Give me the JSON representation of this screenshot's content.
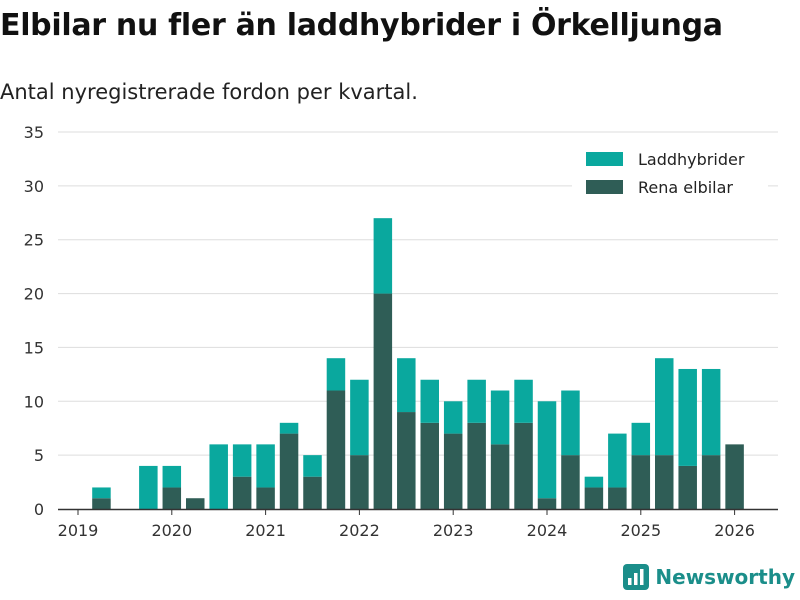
{
  "header": {
    "title": "Elbilar nu fler än laddhybrider i Örkelljunga",
    "subtitle": "Antal nyregistrerade fordon per kvartal."
  },
  "brand": {
    "name": "Newsworthy",
    "icon": "newsworthy-logo-icon"
  },
  "colors": {
    "plugin_hybrid": "#0aa89e",
    "electric": "#2f5d56",
    "grid": "#dddddd",
    "axis": "#333333"
  },
  "chart_data": {
    "type": "bar",
    "stacked": true,
    "title": "Elbilar nu fler än laddhybrider i Örkelljunga",
    "subtitle": "Antal nyregistrerade fordon per kvartal.",
    "xlabel": "",
    "ylabel": "",
    "ylim": [
      0,
      35
    ],
    "yticks": [
      0,
      5,
      10,
      15,
      20,
      25,
      30,
      35
    ],
    "xticks": [
      "2019",
      "2020",
      "2021",
      "2022",
      "2023",
      "2024",
      "2025",
      "2026"
    ],
    "grid": true,
    "legend_position": "top-right",
    "categories": [
      "2019 Q2",
      "2019 Q3",
      "2019 Q4",
      "2020 Q1",
      "2020 Q2",
      "2020 Q3",
      "2020 Q4",
      "2021 Q1",
      "2021 Q2",
      "2021 Q3",
      "2021 Q4",
      "2022 Q1",
      "2022 Q2",
      "2022 Q3",
      "2022 Q4",
      "2023 Q1",
      "2023 Q2",
      "2023 Q3",
      "2023 Q4",
      "2024 Q1",
      "2024 Q2",
      "2024 Q3",
      "2024 Q4",
      "2025 Q1",
      "2025 Q2",
      "2025 Q3",
      "2025 Q4",
      "2026 Q1"
    ],
    "series": [
      {
        "name": "Rena elbilar",
        "values": [
          1,
          0,
          0,
          2,
          1,
          0,
          3,
          2,
          7,
          3,
          11,
          5,
          20,
          9,
          8,
          7,
          8,
          6,
          8,
          1,
          5,
          2,
          2,
          5,
          5,
          4,
          5,
          6
        ]
      },
      {
        "name": "Laddhybrider",
        "values": [
          1,
          0,
          4,
          2,
          0,
          6,
          3,
          4,
          1,
          2,
          3,
          7,
          7,
          5,
          4,
          3,
          4,
          5,
          4,
          9,
          6,
          1,
          5,
          3,
          9,
          9,
          8,
          0
        ]
      }
    ]
  }
}
